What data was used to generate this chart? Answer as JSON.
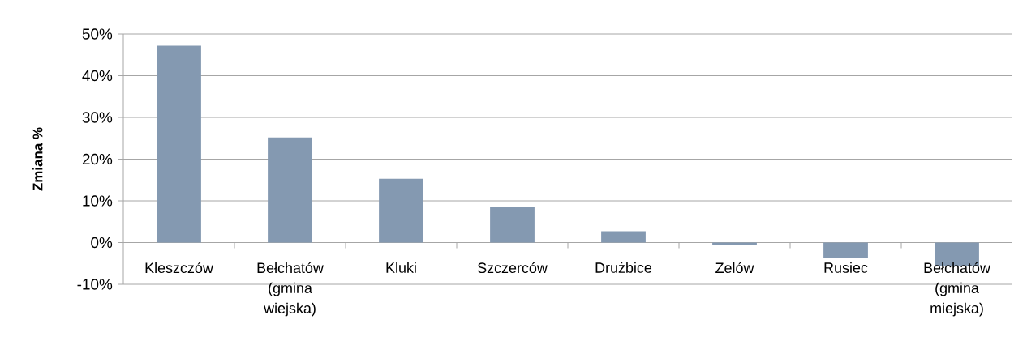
{
  "chart_data": {
    "type": "bar",
    "ylabel": "Zmiana %",
    "categories": [
      "Kleszczów",
      "Bełchatów (gmina wiejska)",
      "Kluki",
      "Szczerców",
      "Drużbice",
      "Zelów",
      "Rusiec",
      "Bełchatów (gmina miejska)"
    ],
    "values": [
      47.2,
      25.2,
      15.3,
      8.5,
      2.7,
      -0.7,
      -3.6,
      -5.6
    ],
    "color": "#8499b1",
    "ylim": [
      -10,
      50
    ],
    "yticks": [
      {
        "value": -10,
        "label": "-10%"
      },
      {
        "value": 0,
        "label": "0%"
      },
      {
        "value": 10,
        "label": "10%"
      },
      {
        "value": 20,
        "label": "20%"
      },
      {
        "value": 30,
        "label": "30%"
      },
      {
        "value": 40,
        "label": "40%"
      },
      {
        "value": 50,
        "label": "50%"
      }
    ],
    "grid": "y"
  }
}
